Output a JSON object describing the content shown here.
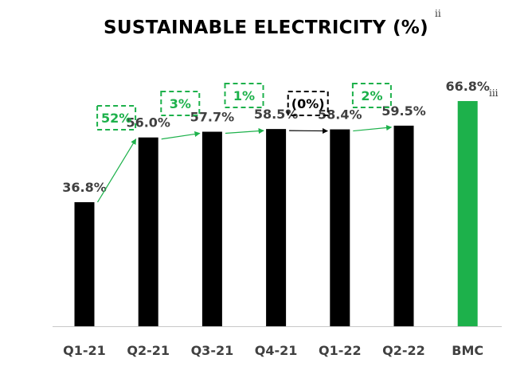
{
  "chart_data": {
    "type": "bar",
    "title": "SUSTAINABLE ELECTRICITY (%)",
    "title_note": "ii",
    "categories": [
      "Q1-21",
      "Q2-21",
      "Q3-21",
      "Q4-21",
      "Q1-22",
      "Q2-22",
      "BMC"
    ],
    "values": [
      36.8,
      56.0,
      57.7,
      58.5,
      58.4,
      59.5,
      66.8
    ],
    "value_labels": [
      "36.8%",
      "56.0%",
      "57.7%",
      "58.5%",
      "58.4%",
      "59.5%",
      "66.8%"
    ],
    "bar_colors": [
      "#000000",
      "#000000",
      "#000000",
      "#000000",
      "#000000",
      "#000000",
      "#1db14b"
    ],
    "category_notes": [
      "",
      "",
      "",
      "",
      "",
      "",
      "iii"
    ],
    "changes": [
      {
        "from": "Q1-21",
        "to": "Q2-21",
        "label": "52%",
        "color": "#1db14b"
      },
      {
        "from": "Q2-21",
        "to": "Q3-21",
        "label": "3%",
        "color": "#1db14b"
      },
      {
        "from": "Q3-21",
        "to": "Q4-21",
        "label": "1%",
        "color": "#1db14b"
      },
      {
        "from": "Q4-21",
        "to": "Q1-22",
        "label": "(0%)",
        "color": "#000000"
      },
      {
        "from": "Q1-22",
        "to": "Q2-22",
        "label": "2%",
        "color": "#1db14b"
      }
    ],
    "ylim": [
      0,
      76
    ],
    "grid": false,
    "legend": "none",
    "xlabel": "",
    "ylabel": ""
  }
}
